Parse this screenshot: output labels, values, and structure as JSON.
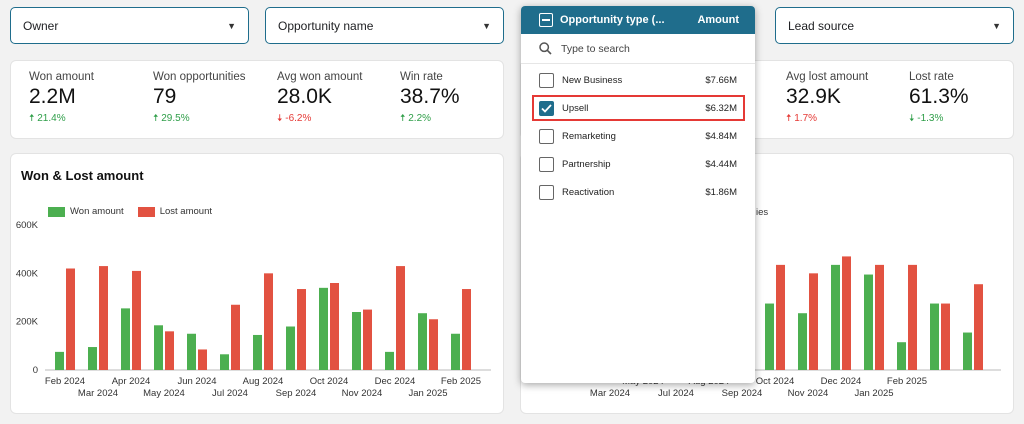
{
  "filters": {
    "owner": "Owner",
    "opportunity_name": "Opportunity name",
    "lead_source": "Lead source"
  },
  "kpis": [
    {
      "label": "Won amount",
      "value": "2.2M",
      "change": "21.4%",
      "direction": "up"
    },
    {
      "label": "Won opportunities",
      "value": "79",
      "change": "29.5%",
      "direction": "up"
    },
    {
      "label": "Avg won amount",
      "value": "28.0K",
      "change": "-6.2%",
      "direction": "down"
    },
    {
      "label": "Win rate",
      "value": "38.7%",
      "change": "2.2%",
      "direction": "up"
    }
  ],
  "kpis_right": [
    {
      "label": "Avg lost amount",
      "value": "32.9K",
      "change": "1.7%",
      "direction": "up_bad"
    },
    {
      "label": "Lost rate",
      "value": "61.3%",
      "change": "-1.3%",
      "direction": "down_good"
    }
  ],
  "dropdown": {
    "header_label": "Opportunity type (...",
    "amount_label": "Amount",
    "search_placeholder": "Type to search",
    "items": [
      {
        "label": "New Business",
        "amount": "$7.66M",
        "checked": false
      },
      {
        "label": "Upsell",
        "amount": "$6.32M",
        "checked": true
      },
      {
        "label": "Remarketing",
        "amount": "$4.84M",
        "checked": false
      },
      {
        "label": "Partnership",
        "amount": "$4.44M",
        "checked": false
      },
      {
        "label": "Reactivation",
        "amount": "$1.86M",
        "checked": false
      }
    ]
  },
  "right_chart": {
    "partial_legend": "ies"
  },
  "colors": {
    "won": "#4caf50",
    "lost": "#e25241",
    "accent": "#1f6d8c"
  },
  "chart_data": [
    {
      "type": "bar",
      "title": "Won & Lost amount",
      "categories": [
        "Feb 2024",
        "Mar 2024",
        "Apr 2024",
        "May 2024",
        "Jun 2024",
        "Jul 2024",
        "Aug 2024",
        "Sep 2024",
        "Oct 2024",
        "Nov 2024",
        "Dec 2024",
        "Jan 2025",
        "Feb 2025"
      ],
      "series": [
        {
          "name": "Won amount",
          "values": [
            75000,
            95000,
            255000,
            185000,
            150000,
            65000,
            145000,
            180000,
            340000,
            240000,
            75000,
            235000,
            150000
          ]
        },
        {
          "name": "Lost amount",
          "values": [
            420000,
            430000,
            410000,
            160000,
            85000,
            270000,
            400000,
            335000,
            360000,
            250000,
            430000,
            210000,
            335000
          ]
        }
      ],
      "ylim": [
        0,
        600000
      ],
      "yticks": [
        0,
        200000,
        400000,
        600000
      ],
      "ytick_labels": [
        "0",
        "200K",
        "400K",
        "600K"
      ],
      "legend_position": "top-left"
    },
    {
      "type": "bar",
      "title": "",
      "categories": [
        "Aug 2024",
        "Sep 2024",
        "Oct 2024",
        "Nov 2024",
        "Dec 2024",
        "Jan 2025",
        "Feb 2025"
      ],
      "visible_tick_labels": [
        "Mar 2024",
        "May 2024",
        "Jul 2024",
        "Aug 2024",
        "Sep 2024",
        "Oct 2024",
        "Nov 2024",
        "Dec 2024",
        "Jan 2025",
        "Feb 2025"
      ],
      "series": [
        {
          "name": "Won amount",
          "values": [
            275000,
            235000,
            435000,
            395000,
            115000,
            275000,
            155000
          ]
        },
        {
          "name": "Lost amount",
          "values": [
            435000,
            400000,
            470000,
            435000,
            435000,
            275000,
            355000
          ]
        }
      ],
      "ylim": [
        0,
        600000
      ]
    }
  ]
}
